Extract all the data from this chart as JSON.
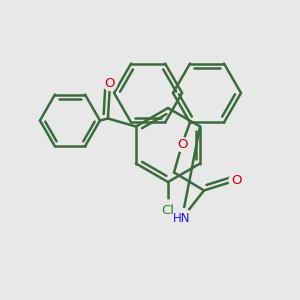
{
  "bg_color": "#e8e8e8",
  "bond_color": "#3a6b3a",
  "bond_width": 1.8,
  "atom_colors": {
    "O": "#cc0000",
    "N": "#1a1aee",
    "Cl": "#228B22",
    "C": "#3a6b3a"
  },
  "font_size": 8.5,
  "fig_size": [
    3.0,
    3.0
  ],
  "dpi": 100
}
